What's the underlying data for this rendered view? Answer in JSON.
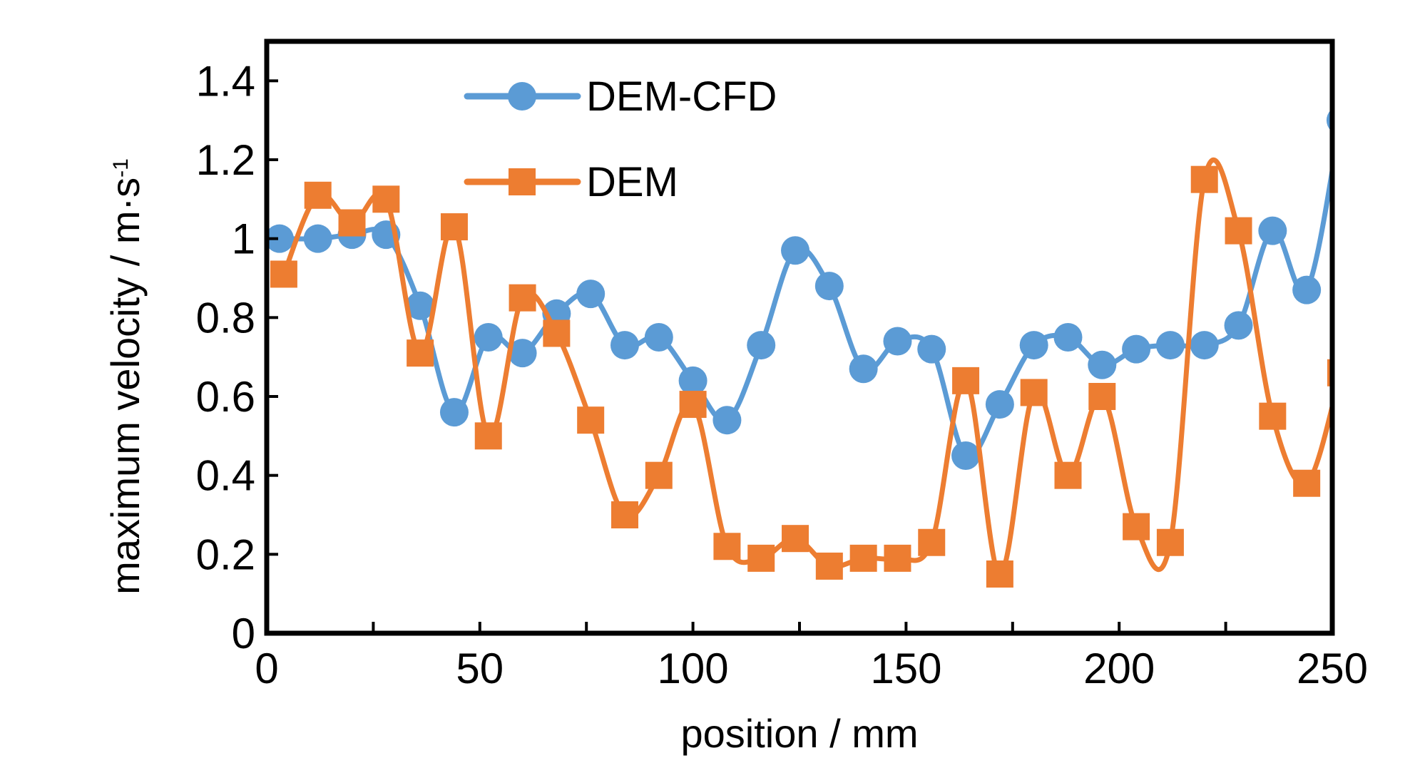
{
  "chart_data": {
    "type": "line",
    "xlabel": "position / mm",
    "ylabel": "maximum velocity / m·s",
    "ylabel_superscript": "-1",
    "xlim": [
      0,
      250
    ],
    "ylim": [
      0,
      1.5
    ],
    "xticks": [
      0,
      50,
      100,
      150,
      200,
      250
    ],
    "xtick_labels": [
      "0",
      "50",
      "100",
      "150",
      "200",
      "250"
    ],
    "yticks": [
      0,
      0.2,
      0.4,
      0.6,
      0.8,
      1,
      1.2,
      1.4
    ],
    "ytick_labels": [
      "0",
      "0.2",
      "0.4",
      "0.6",
      "0.8",
      "1",
      "1.2",
      "1.4"
    ],
    "grid": false,
    "legend_position": "top-left",
    "series": [
      {
        "name": "DEM-CFD",
        "marker": "circle",
        "color": "#5B9BD5",
        "x": [
          3,
          12,
          20,
          28,
          36,
          44,
          52,
          60,
          68,
          76,
          84,
          92,
          100,
          108,
          116,
          124,
          132,
          140,
          148,
          156,
          164,
          172,
          180,
          188,
          196,
          204,
          212,
          220,
          228,
          236,
          244,
          252
        ],
        "y": [
          1.0,
          1.0,
          1.01,
          1.01,
          0.83,
          0.56,
          0.75,
          0.71,
          0.81,
          0.86,
          0.73,
          0.75,
          0.64,
          0.54,
          0.73,
          0.97,
          0.88,
          0.67,
          0.74,
          0.72,
          0.45,
          0.58,
          0.73,
          0.75,
          0.68,
          0.72,
          0.73,
          0.73,
          0.78,
          1.02,
          0.87,
          1.3
        ]
      },
      {
        "name": "DEM",
        "marker": "square",
        "color": "#ED7D31",
        "x": [
          4,
          12,
          20,
          28,
          36,
          44,
          52,
          60,
          68,
          76,
          84,
          92,
          100,
          108,
          116,
          124,
          132,
          140,
          148,
          156,
          164,
          172,
          180,
          188,
          196,
          204,
          212,
          220,
          228,
          236,
          244,
          252
        ],
        "y": [
          0.91,
          1.11,
          1.04,
          1.1,
          0.71,
          1.03,
          0.5,
          0.85,
          0.76,
          0.54,
          0.3,
          0.4,
          0.58,
          0.22,
          0.19,
          0.24,
          0.17,
          0.19,
          0.19,
          0.23,
          0.64,
          0.15,
          0.61,
          0.4,
          0.6,
          0.27,
          0.23,
          1.15,
          1.02,
          0.55,
          0.38,
          0.66
        ]
      }
    ]
  }
}
